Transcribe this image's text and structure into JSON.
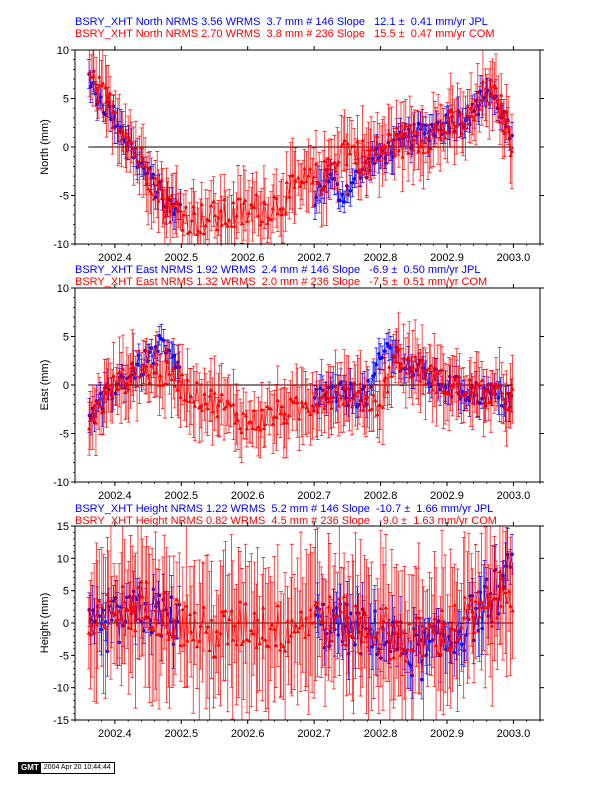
{
  "stamp": {
    "logo": "GMT",
    "date": "2004 Apr 20 10:44:44"
  },
  "colors": {
    "jpl": "#0000ff",
    "com": "#ff0000",
    "axis": "#000000"
  },
  "chart_data": [
    {
      "type": "scatter",
      "title_jpl": "BSRY_XHT North NRMS 3.56 WRMS  3.7 mm # 146 Slope   12.1 ±  0.41 mm/yr JPL",
      "title_com": "BSRY_XHT North NRMS 2.70 WRMS  3.8 mm # 236 Slope   15.5 ±  0.47 mm/yr COM",
      "ylabel": "North (mm)",
      "xlim": [
        2002.34,
        2003.04
      ],
      "ylim": [
        -10,
        10
      ],
      "yticks": [
        -10,
        -5,
        0,
        5,
        10
      ],
      "xticks": [
        "2002.4",
        "2002.5",
        "2002.6",
        "2002.7",
        "2002.8",
        "2002.9",
        "2003.0"
      ],
      "grid": false,
      "series": [
        {
          "name": "JPL",
          "color": "#0000ff",
          "marker": "circle",
          "anchors": [
            [
              2002.36,
              6.5
            ],
            [
              2002.4,
              3
            ],
            [
              2002.44,
              -2
            ],
            [
              2002.48,
              -6
            ],
            [
              2002.52,
              -8
            ],
            [
              2002.6,
              -8
            ],
            [
              2002.68,
              -7
            ],
            [
              2002.72,
              -3
            ],
            [
              2002.74,
              -5
            ],
            [
              2002.78,
              -2
            ],
            [
              2002.82,
              0
            ],
            [
              2002.86,
              1.5
            ],
            [
              2002.9,
              2.5
            ],
            [
              2002.94,
              3.5
            ],
            [
              2002.96,
              6
            ],
            [
              2002.98,
              4
            ],
            [
              2003.0,
              0
            ]
          ],
          "noise": 1.2,
          "err": 1.3,
          "ranges": [
            [
              2002.36,
              2002.5
            ],
            [
              2002.7,
              2003.0
            ]
          ],
          "count": 146
        },
        {
          "name": "COM",
          "color": "#ff0000",
          "marker": "triangle",
          "anchors": [
            [
              2002.36,
              7
            ],
            [
              2002.4,
              3.5
            ],
            [
              2002.44,
              -1.5
            ],
            [
              2002.48,
              -6
            ],
            [
              2002.52,
              -7.5
            ],
            [
              2002.58,
              -7
            ],
            [
              2002.64,
              -6
            ],
            [
              2002.68,
              -4
            ],
            [
              2002.72,
              -3
            ],
            [
              2002.74,
              0
            ],
            [
              2002.78,
              -1
            ],
            [
              2002.82,
              0.5
            ],
            [
              2002.86,
              1
            ],
            [
              2002.9,
              2
            ],
            [
              2002.94,
              3
            ],
            [
              2002.96,
              6
            ],
            [
              2002.98,
              4
            ],
            [
              2003.0,
              0
            ]
          ],
          "noise": 1.8,
          "err": 2.8,
          "ranges": [
            [
              2002.36,
              2003.0
            ]
          ],
          "count": 236
        }
      ]
    },
    {
      "type": "scatter",
      "title_jpl": "BSRY_XHT East NRMS 1.92 WRMS  2.4 mm # 146 Slope   -6.9 ±  0.50 mm/yr JPL",
      "title_com": "BSRY_XHT East NRMS 1.32 WRMS  2.0 mm # 236 Slope   -7.5 ±  0.51 mm/yr COM",
      "ylabel": "East (mm)",
      "xlim": [
        2002.34,
        2003.04
      ],
      "ylim": [
        -10,
        10
      ],
      "yticks": [
        -10,
        -5,
        0,
        5,
        10
      ],
      "xticks": [
        "2002.4",
        "2002.5",
        "2002.6",
        "2002.7",
        "2002.8",
        "2002.9",
        "2003.0"
      ],
      "grid": false,
      "series": [
        {
          "name": "JPL",
          "color": "#0000ff",
          "marker": "circle",
          "anchors": [
            [
              2002.36,
              -4
            ],
            [
              2002.38,
              -2
            ],
            [
              2002.4,
              0
            ],
            [
              2002.44,
              2
            ],
            [
              2002.47,
              4
            ],
            [
              2002.5,
              1
            ],
            [
              2002.7,
              -1
            ],
            [
              2002.74,
              -1
            ],
            [
              2002.78,
              -1
            ],
            [
              2002.81,
              4
            ],
            [
              2002.84,
              2
            ],
            [
              2002.88,
              0.5
            ],
            [
              2002.92,
              -0.5
            ],
            [
              2002.96,
              -1
            ],
            [
              2003.0,
              -1.5
            ]
          ],
          "noise": 1.3,
          "err": 1.3,
          "ranges": [
            [
              2002.36,
              2002.5
            ],
            [
              2002.7,
              2003.0
            ]
          ],
          "count": 146
        },
        {
          "name": "COM",
          "color": "#ff0000",
          "marker": "triangle",
          "anchors": [
            [
              2002.36,
              -4
            ],
            [
              2002.4,
              0
            ],
            [
              2002.44,
              1.5
            ],
            [
              2002.48,
              1
            ],
            [
              2002.52,
              -1
            ],
            [
              2002.56,
              -2
            ],
            [
              2002.6,
              -4
            ],
            [
              2002.64,
              -3
            ],
            [
              2002.68,
              -2.5
            ],
            [
              2002.72,
              -1
            ],
            [
              2002.76,
              -1
            ],
            [
              2002.8,
              -2
            ],
            [
              2002.82,
              3
            ],
            [
              2002.86,
              1.5
            ],
            [
              2002.9,
              0
            ],
            [
              2002.96,
              -1
            ],
            [
              2003.0,
              -1.5
            ]
          ],
          "noise": 1.4,
          "err": 2.8,
          "ranges": [
            [
              2002.36,
              2003.0
            ]
          ],
          "count": 236
        }
      ]
    },
    {
      "type": "scatter",
      "title_jpl": "BSRY_XHT Height NRMS 1.22 WRMS  5.2 mm # 146 Slope  -10.7 ±  1.66 mm/yr JPL",
      "title_com": "BSRY_XHT Height NRMS 0.82 WRMS  4.5 mm # 236 Slope   -9.0 ±  1.63 mm/yr COM",
      "ylabel": "Height (mm)",
      "xlim": [
        2002.34,
        2003.04
      ],
      "ylim": [
        -15,
        15
      ],
      "yticks": [
        -15,
        -10,
        -5,
        0,
        5,
        10,
        15
      ],
      "xticks": [
        "2002.4",
        "2002.5",
        "2002.6",
        "2002.7",
        "2002.8",
        "2002.9",
        "2003.0"
      ],
      "grid": false,
      "series": [
        {
          "name": "JPL",
          "color": "#0000ff",
          "marker": "circle",
          "anchors": [
            [
              2002.36,
              -2
            ],
            [
              2002.4,
              0
            ],
            [
              2002.45,
              2
            ],
            [
              2002.5,
              0
            ],
            [
              2002.7,
              0
            ],
            [
              2002.8,
              -2
            ],
            [
              2002.86,
              -5
            ],
            [
              2002.9,
              -3
            ],
            [
              2002.96,
              3
            ],
            [
              2003.0,
              8
            ]
          ],
          "noise": 4.0,
          "err": 3.0,
          "ranges": [
            [
              2002.36,
              2002.5
            ],
            [
              2002.7,
              2003.0
            ]
          ],
          "count": 146
        },
        {
          "name": "COM",
          "color": "#ff0000",
          "marker": "triangle",
          "anchors": [
            [
              2002.36,
              -2
            ],
            [
              2002.4,
              2
            ],
            [
              2002.45,
              3
            ],
            [
              2002.5,
              0
            ],
            [
              2002.55,
              -2
            ],
            [
              2002.6,
              0
            ],
            [
              2002.65,
              -1
            ],
            [
              2002.7,
              1
            ],
            [
              2002.75,
              0
            ],
            [
              2002.8,
              -1
            ],
            [
              2002.85,
              -3
            ],
            [
              2002.9,
              -1
            ],
            [
              2002.96,
              2
            ],
            [
              2003.0,
              6
            ]
          ],
          "noise": 4.0,
          "err": 9.0,
          "ranges": [
            [
              2002.36,
              2003.0
            ]
          ],
          "count": 236
        }
      ]
    }
  ]
}
